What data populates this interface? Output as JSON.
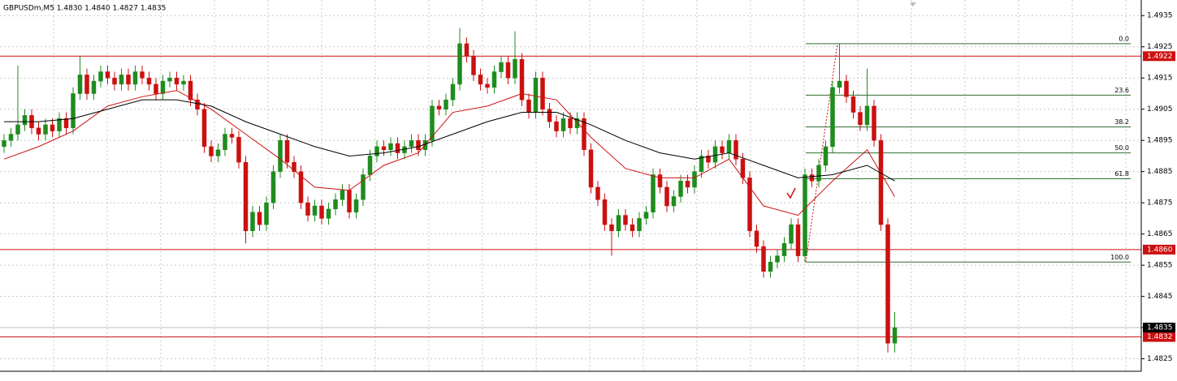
{
  "chart_data": {
    "type": "candlestick",
    "title": "GBPUSDm,M5  1.4830 1.4840 1.4827 1.4835",
    "up_color": "#1e8c1e",
    "down_color": "#cc1010",
    "ylim": [
      1.4821,
      1.494
    ],
    "yticks": [
      1.4935,
      1.4925,
      1.4915,
      1.4905,
      1.4895,
      1.4885,
      1.4875,
      1.4865,
      1.4855,
      1.4845,
      1.4835,
      1.4825
    ],
    "grid": true,
    "open": [
      1.4893,
      1.4895,
      1.4897,
      1.49,
      1.4903,
      1.4899,
      1.4897,
      1.49,
      1.4898,
      1.4902,
      1.4899,
      1.491,
      1.4916,
      1.491,
      1.4914,
      1.4917,
      1.4915,
      1.4913,
      1.4916,
      1.4913,
      1.4917,
      1.4915,
      1.4913,
      1.491,
      1.4914,
      1.4915,
      1.4913,
      1.4914,
      1.4908,
      1.4905,
      1.4893,
      1.489,
      1.4892,
      1.4897,
      1.4896,
      1.4888,
      1.4866,
      1.4872,
      1.4868,
      1.4875,
      1.4885,
      1.4895,
      1.4888,
      1.4885,
      1.4875,
      1.4871,
      1.4874,
      1.487,
      1.4873,
      1.4876,
      1.4879,
      1.4872,
      1.4876,
      1.4884,
      1.489,
      1.4893,
      1.4892,
      1.4894,
      1.4891,
      1.4893,
      1.4895,
      1.4892,
      1.4895,
      1.4906,
      1.4905,
      1.4908,
      1.4913,
      1.4926,
      1.4922,
      1.4916,
      1.4913,
      1.4912,
      1.4917,
      1.492,
      1.4915,
      1.4921,
      1.4908,
      1.4904,
      1.4915,
      1.4905,
      1.4901,
      1.4898,
      1.4902,
      1.4899,
      1.4902,
      1.4892,
      1.488,
      1.4876,
      1.4868,
      1.4866,
      1.4871,
      1.4868,
      1.4866,
      1.487,
      1.4872,
      1.4884,
      1.488,
      1.4874,
      1.4877,
      1.4882,
      1.488,
      1.4885,
      1.489,
      1.4888,
      1.4893,
      1.4891,
      1.4895,
      1.4889,
      1.4883,
      1.4866,
      1.4861,
      1.4853,
      1.4856,
      1.4858,
      1.4862,
      1.4868,
      1.4858,
      1.4884,
      1.4882,
      1.4887,
      1.4893,
      1.4912,
      1.4914,
      1.4909,
      1.4904,
      1.49,
      1.4906,
      1.4895,
      1.4868,
      1.483
    ],
    "high": [
      1.4897,
      1.4899,
      1.4919,
      1.4905,
      1.4905,
      1.4901,
      1.4902,
      1.4902,
      1.4904,
      1.4904,
      1.4912,
      1.4922,
      1.4918,
      1.4916,
      1.4919,
      1.4919,
      1.4917,
      1.4918,
      1.4918,
      1.4919,
      1.4919,
      1.4917,
      1.4915,
      1.4916,
      1.4917,
      1.4917,
      1.4916,
      1.4916,
      1.491,
      1.4907,
      1.4895,
      1.4894,
      1.4899,
      1.4899,
      1.4898,
      1.489,
      1.4874,
      1.4874,
      1.4877,
      1.4887,
      1.4897,
      1.4897,
      1.489,
      1.4887,
      1.4877,
      1.4876,
      1.4876,
      1.4875,
      1.4878,
      1.4881,
      1.4881,
      1.4878,
      1.4886,
      1.4892,
      1.4895,
      1.4895,
      1.4896,
      1.4896,
      1.4895,
      1.4897,
      1.4897,
      1.4897,
      1.4908,
      1.4908,
      1.491,
      1.4915,
      1.4931,
      1.4928,
      1.4924,
      1.4918,
      1.4915,
      1.4919,
      1.4922,
      1.4922,
      1.493,
      1.4923,
      1.491,
      1.4917,
      1.4917,
      1.4907,
      1.4903,
      1.4904,
      1.4904,
      1.4904,
      1.4904,
      1.4894,
      1.4882,
      1.4878,
      1.487,
      1.4873,
      1.4873,
      1.487,
      1.4872,
      1.4874,
      1.4886,
      1.4886,
      1.4882,
      1.4879,
      1.4884,
      1.4884,
      1.4887,
      1.4892,
      1.4892,
      1.4895,
      1.4895,
      1.4897,
      1.4897,
      1.4891,
      1.4885,
      1.4868,
      1.4863,
      1.4858,
      1.486,
      1.4864,
      1.487,
      1.487,
      1.4886,
      1.4886,
      1.4889,
      1.4895,
      1.4914,
      1.4926,
      1.4916,
      1.4911,
      1.4906,
      1.4918,
      1.4908,
      1.4897,
      1.487,
      1.484
    ],
    "low": [
      1.4891,
      1.4893,
      1.4895,
      1.4898,
      1.4897,
      1.4895,
      1.4895,
      1.4896,
      1.4896,
      1.4897,
      1.4897,
      1.4908,
      1.4908,
      1.4908,
      1.4912,
      1.4913,
      1.4911,
      1.4911,
      1.4911,
      1.4911,
      1.4913,
      1.4911,
      1.4908,
      1.4908,
      1.4912,
      1.4911,
      1.4911,
      1.4906,
      1.4903,
      1.4891,
      1.4888,
      1.4888,
      1.489,
      1.4894,
      1.4886,
      1.4862,
      1.4864,
      1.4866,
      1.4866,
      1.4873,
      1.4883,
      1.4886,
      1.4883,
      1.4873,
      1.4869,
      1.4869,
      1.4868,
      1.4868,
      1.4871,
      1.4874,
      1.487,
      1.487,
      1.4874,
      1.4882,
      1.4888,
      1.489,
      1.489,
      1.4889,
      1.4889,
      1.4891,
      1.489,
      1.489,
      1.4893,
      1.4903,
      1.4903,
      1.4906,
      1.4911,
      1.492,
      1.4914,
      1.4911,
      1.491,
      1.491,
      1.4915,
      1.4913,
      1.4913,
      1.4906,
      1.4902,
      1.4902,
      1.4903,
      1.4899,
      1.4896,
      1.4896,
      1.4897,
      1.4897,
      1.489,
      1.4878,
      1.4874,
      1.4866,
      1.4858,
      1.4864,
      1.4866,
      1.4864,
      1.4864,
      1.4868,
      1.487,
      1.4878,
      1.4872,
      1.4872,
      1.4875,
      1.4878,
      1.4878,
      1.4883,
      1.4886,
      1.4886,
      1.4889,
      1.4889,
      1.4887,
      1.4881,
      1.4864,
      1.4859,
      1.4851,
      1.4851,
      1.4854,
      1.4856,
      1.486,
      1.4856,
      1.4856,
      1.488,
      1.488,
      1.4885,
      1.4891,
      1.491,
      1.4907,
      1.4902,
      1.4898,
      1.4898,
      1.4893,
      1.4866,
      1.4827,
      1.4827
    ],
    "close": [
      1.4895,
      1.4897,
      1.49,
      1.4903,
      1.4899,
      1.4897,
      1.49,
      1.4898,
      1.4902,
      1.4899,
      1.491,
      1.4916,
      1.491,
      1.4914,
      1.4917,
      1.4915,
      1.4913,
      1.4916,
      1.4913,
      1.4917,
      1.4915,
      1.4913,
      1.491,
      1.4914,
      1.4915,
      1.4913,
      1.4914,
      1.4908,
      1.4905,
      1.4893,
      1.489,
      1.4892,
      1.4897,
      1.4896,
      1.4888,
      1.4866,
      1.4872,
      1.4868,
      1.4875,
      1.4885,
      1.4895,
      1.4888,
      1.4885,
      1.4875,
      1.4871,
      1.4874,
      1.487,
      1.4873,
      1.4876,
      1.4879,
      1.4872,
      1.4876,
      1.4884,
      1.489,
      1.4893,
      1.4892,
      1.4894,
      1.4891,
      1.4893,
      1.4895,
      1.4892,
      1.4895,
      1.4906,
      1.4905,
      1.4908,
      1.4913,
      1.4926,
      1.4922,
      1.4916,
      1.4913,
      1.4912,
      1.4917,
      1.492,
      1.4915,
      1.4921,
      1.4908,
      1.4904,
      1.4915,
      1.4905,
      1.4901,
      1.4898,
      1.4902,
      1.4899,
      1.4902,
      1.4892,
      1.488,
      1.4876,
      1.4868,
      1.4866,
      1.4871,
      1.4868,
      1.4866,
      1.487,
      1.4872,
      1.4884,
      1.488,
      1.4874,
      1.4877,
      1.4882,
      1.488,
      1.4885,
      1.489,
      1.4888,
      1.4893,
      1.4891,
      1.4895,
      1.4889,
      1.4883,
      1.4866,
      1.4861,
      1.4853,
      1.4856,
      1.4858,
      1.4862,
      1.4868,
      1.4858,
      1.4884,
      1.4882,
      1.4887,
      1.4893,
      1.4912,
      1.4914,
      1.4909,
      1.4904,
      1.49,
      1.4906,
      1.4895,
      1.4868,
      1.483,
      1.4835
    ],
    "series": [
      {
        "color": "#cc1010",
        "x": [
          0,
          5,
          10,
          15,
          20,
          25,
          30,
          35,
          40,
          45,
          50,
          55,
          60,
          65,
          70,
          75,
          80,
          85,
          90,
          95,
          100,
          105,
          110,
          115,
          120,
          125,
          129
        ],
        "values": [
          1.4889,
          1.4893,
          1.4898,
          1.4906,
          1.4909,
          1.4911,
          1.4905,
          1.4897,
          1.4889,
          1.488,
          1.4879,
          1.4887,
          1.4891,
          1.4904,
          1.4906,
          1.491,
          1.4908,
          1.4896,
          1.4886,
          1.4883,
          1.4883,
          1.4889,
          1.4874,
          1.4871,
          1.4882,
          1.4892,
          1.4877
        ]
      },
      {
        "color": "#000000",
        "x": [
          0,
          5,
          10,
          15,
          20,
          25,
          30,
          35,
          40,
          45,
          50,
          55,
          60,
          65,
          70,
          75,
          80,
          85,
          90,
          95,
          100,
          105,
          110,
          115,
          120,
          125,
          129
        ],
        "values": [
          1.4901,
          1.4901,
          1.4902,
          1.4905,
          1.4908,
          1.4908,
          1.4906,
          1.4901,
          1.4897,
          1.4893,
          1.489,
          1.4891,
          1.4893,
          1.4897,
          1.4901,
          1.4904,
          1.4904,
          1.49,
          1.4895,
          1.4891,
          1.4889,
          1.4891,
          1.4887,
          1.4883,
          1.4884,
          1.4887,
          1.4882
        ]
      }
    ],
    "hlines": [
      1.4922,
      {
        "value": 1.486,
        "label": "1.4860"
      },
      1.4832
    ],
    "hline_color": "#cc1010",
    "current_price": 1.4835,
    "fib_levels": [
      "0.0",
      "23.6",
      "38.2",
      "50.0",
      "61.8",
      "100.0"
    ],
    "fib_prices": [
      1.4926,
      1.49095,
      1.48993,
      1.4891,
      1.48827,
      1.4856
    ],
    "fib_color": "#2f6b2f"
  }
}
